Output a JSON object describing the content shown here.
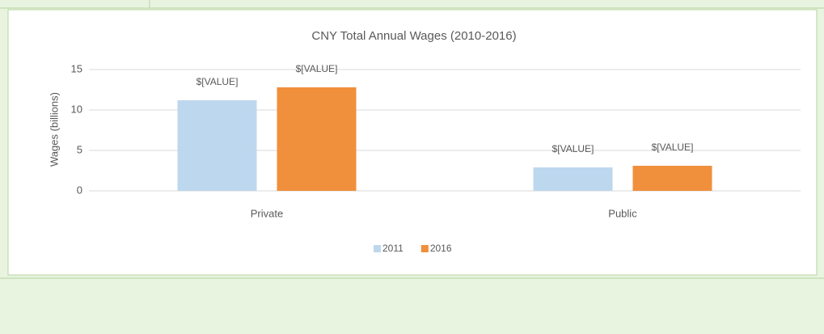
{
  "chart_data": {
    "type": "bar",
    "title": "CNY Total Annual Wages (2010-2016)",
    "y_label": "Wages (billions)",
    "categories": [
      "Private",
      "Public"
    ],
    "series": [
      {
        "name": "2011",
        "color": "#bdd7ee",
        "values": [
          11.2,
          2.9
        ],
        "value_labels": [
          "$[VALUE]",
          "$[VALUE]"
        ]
      },
      {
        "name": "2016",
        "color": "#f08f3c",
        "values": [
          12.8,
          3.1
        ],
        "value_labels": [
          "$[VALUE]",
          "$[VALUE]"
        ]
      }
    ],
    "ylim": [
      0,
      15
    ],
    "yticks": [
      0,
      5,
      10,
      15
    ],
    "grid": true,
    "legend": "bottom"
  }
}
